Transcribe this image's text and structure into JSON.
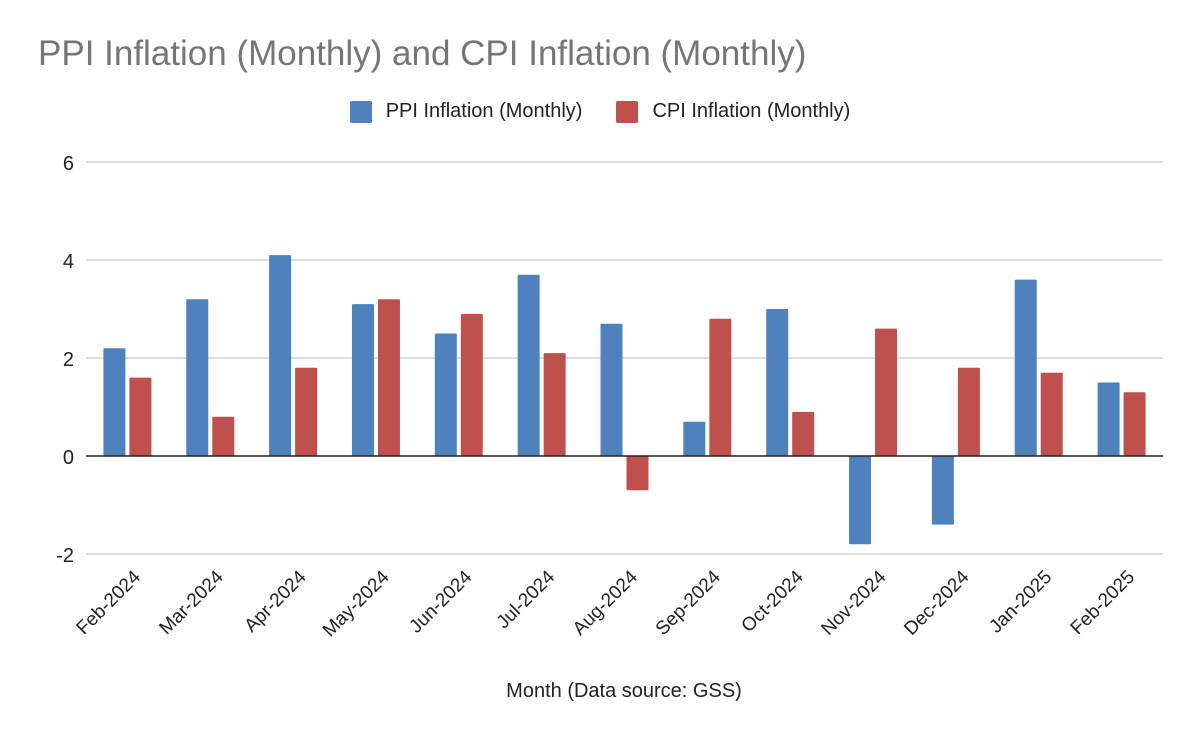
{
  "chart_data": {
    "type": "bar",
    "title": "PPI Inflation (Monthly) and CPI Inflation (Monthly)",
    "xlabel": "Month (Data source: GSS)",
    "ylabel": "",
    "ylim": [
      -2,
      6
    ],
    "yticks": [
      -2,
      0,
      2,
      4,
      6
    ],
    "grid": true,
    "legend_position": "top-center",
    "categories": [
      "Feb-2024",
      "Mar-2024",
      "Apr-2024",
      "May-2024",
      "Jun-2024",
      "Jul-2024",
      "Aug-2024",
      "Sep-2024",
      "Oct-2024",
      "Nov-2024",
      "Dec-2024",
      "Jan-2025",
      "Feb-2025"
    ],
    "series": [
      {
        "name": "PPI Inflation (Monthly)",
        "color": "#4f81bd",
        "values": [
          2.2,
          3.2,
          4.1,
          3.1,
          2.5,
          3.7,
          2.7,
          0.7,
          3.0,
          -1.8,
          -1.4,
          3.6,
          1.5
        ]
      },
      {
        "name": "CPI Inflation (Monthly)",
        "color": "#c0504d",
        "values": [
          1.6,
          0.8,
          1.8,
          3.2,
          2.9,
          2.1,
          -0.7,
          2.8,
          0.9,
          2.6,
          1.8,
          1.7,
          1.3
        ]
      }
    ]
  }
}
